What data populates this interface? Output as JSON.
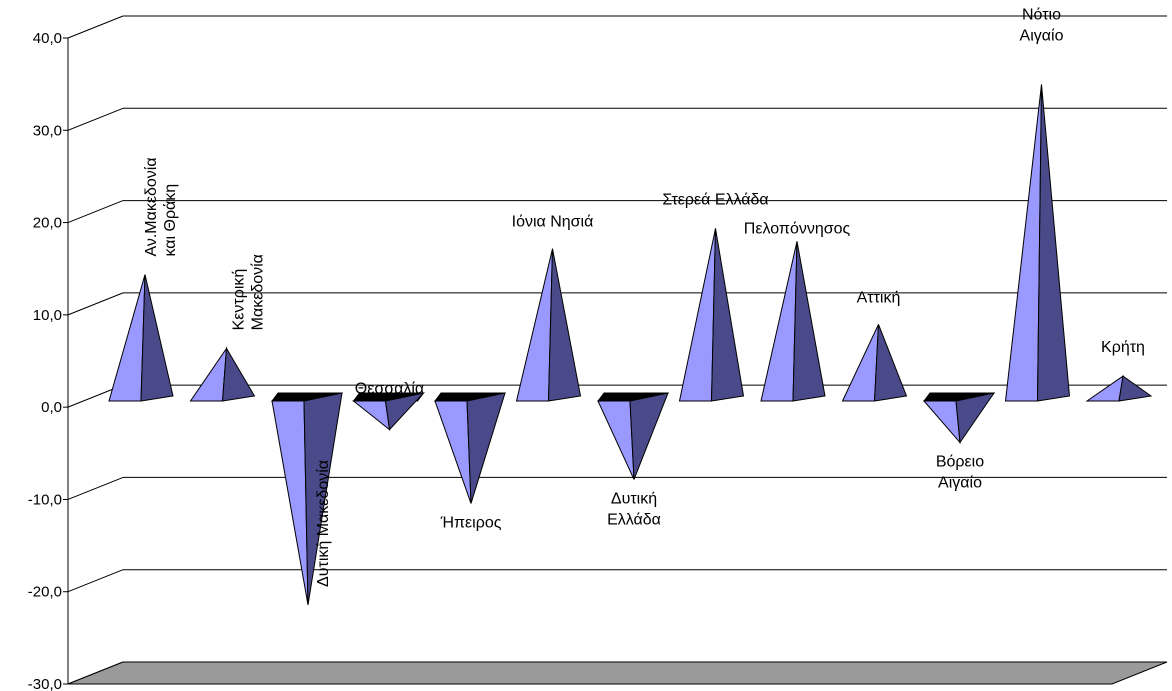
{
  "chart_data": {
    "type": "bar",
    "style": "3d-pyramid",
    "categories": [
      [
        "Αν.Μακεδονία",
        "και Θράκη"
      ],
      [
        "Κεντρική",
        "Μακεδονία"
      ],
      [
        "Δυτική Μακεδονία"
      ],
      [
        "Θεσσαλία"
      ],
      [
        "Ήπειρος"
      ],
      [
        "Ιόνια Νησιά"
      ],
      [
        "Δυτική",
        "Ελλάδα"
      ],
      [
        "Στερεά Ελλάδα"
      ],
      [
        "Πελοπόννησος"
      ],
      [
        "Αττική"
      ],
      [
        "Βόρειο",
        "Αιγαίο"
      ],
      [
        "Νότιο",
        "Αιγαίο"
      ],
      [
        "Κρήτη"
      ]
    ],
    "values": [
      14.8,
      6.8,
      -21.0,
      -2.0,
      -10.0,
      17.6,
      -7.4,
      19.8,
      18.4,
      9.4,
      -3.4,
      35.4,
      3.8
    ],
    "yticks": [
      "40,0",
      "30,0",
      "20,0",
      "10,0",
      "0,0",
      "-10,0",
      "-20,0",
      "-30,0"
    ],
    "ylim": [
      -30,
      40
    ],
    "grid": true,
    "colors": {
      "front": "#9999ff",
      "side": "#4a4a8a",
      "grid": "#000000",
      "floor": "#9a9a9a"
    }
  }
}
